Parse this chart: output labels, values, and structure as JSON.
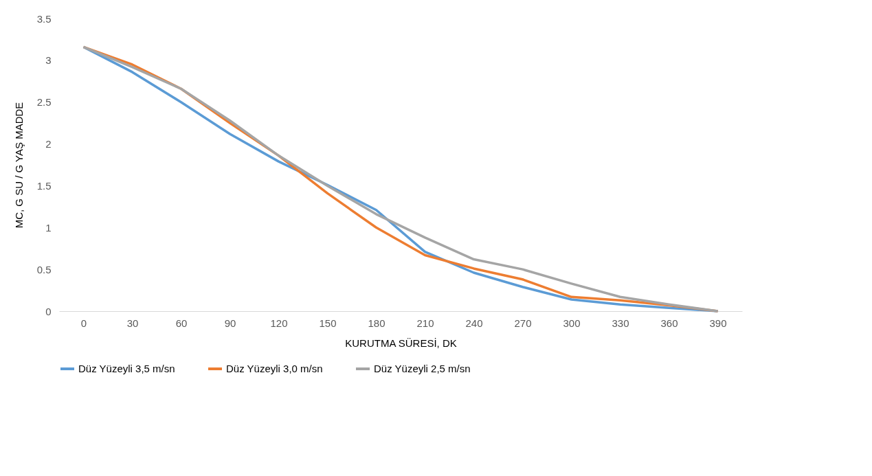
{
  "chart_data": {
    "type": "line",
    "xlabel": "KURUTMA SÜRESİ, DK",
    "ylabel": "MC, G SU / G YAŞ MADDE",
    "categories": [
      "0",
      "30",
      "60",
      "90",
      "120",
      "150",
      "180",
      "210",
      "240",
      "270",
      "300",
      "330",
      "360",
      "390"
    ],
    "ylim": [
      0,
      3.5
    ],
    "yticks": [
      0,
      0.5,
      1,
      1.5,
      2,
      2.5,
      3,
      3.5
    ],
    "grid": false,
    "legend": "bottom",
    "line_style": "solid",
    "marker": "none",
    "series": [
      {
        "name": "Düz Yüzeyli 3,5 m/sn",
        "color": "#5b9bd5",
        "values": [
          3.16,
          2.86,
          2.5,
          2.12,
          1.79,
          1.51,
          1.21,
          0.71,
          0.46,
          0.29,
          0.14,
          0.08,
          0.04,
          0
        ]
      },
      {
        "name": "Düz Yüzeyli 3,0 m/sn",
        "color": "#ed7d31",
        "values": [
          3.16,
          2.95,
          2.66,
          2.25,
          1.86,
          1.41,
          1.0,
          0.67,
          0.51,
          0.38,
          0.17,
          0.13,
          0.07,
          0
        ]
      },
      {
        "name": "Düz Yüzeyli 2,5 m/sn",
        "color": "#a5a5a5",
        "values": [
          3.16,
          2.92,
          2.66,
          2.28,
          1.86,
          1.5,
          1.16,
          0.88,
          0.62,
          0.5,
          0.33,
          0.17,
          0.08,
          0
        ]
      }
    ]
  }
}
